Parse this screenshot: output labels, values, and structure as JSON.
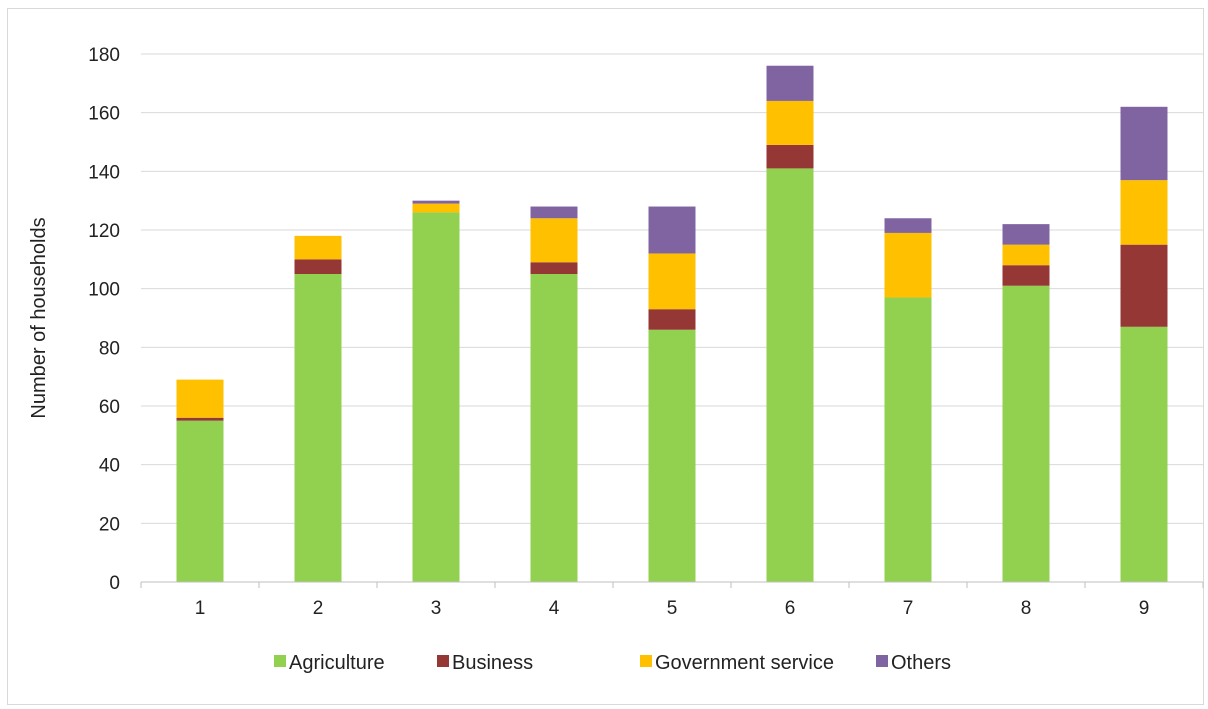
{
  "chart_data": {
    "type": "bar",
    "stacked": true,
    "title": "",
    "xlabel": "",
    "ylabel": "Number of households",
    "ylim": [
      0,
      180
    ],
    "yticks": [
      0,
      20,
      40,
      60,
      80,
      100,
      120,
      140,
      160,
      180
    ],
    "grid": true,
    "legend_position": "bottom",
    "categories": [
      "1",
      "2",
      "3",
      "4",
      "5",
      "6",
      "7",
      "8",
      "9"
    ],
    "series": [
      {
        "name": "Agriculture",
        "color": "#92d050",
        "values": [
          55,
          105,
          126,
          105,
          86,
          141,
          97,
          101,
          87
        ]
      },
      {
        "name": "Business",
        "color": "#953735",
        "values": [
          1,
          5,
          0,
          4,
          7,
          8,
          0,
          7,
          28
        ]
      },
      {
        "name": "Government service",
        "color": "#ffc000",
        "values": [
          13,
          8,
          3,
          15,
          19,
          15,
          22,
          7,
          22
        ]
      },
      {
        "name": "Others",
        "color": "#8064a2",
        "values": [
          0,
          0,
          1,
          4,
          16,
          12,
          5,
          7,
          25
        ]
      }
    ]
  }
}
